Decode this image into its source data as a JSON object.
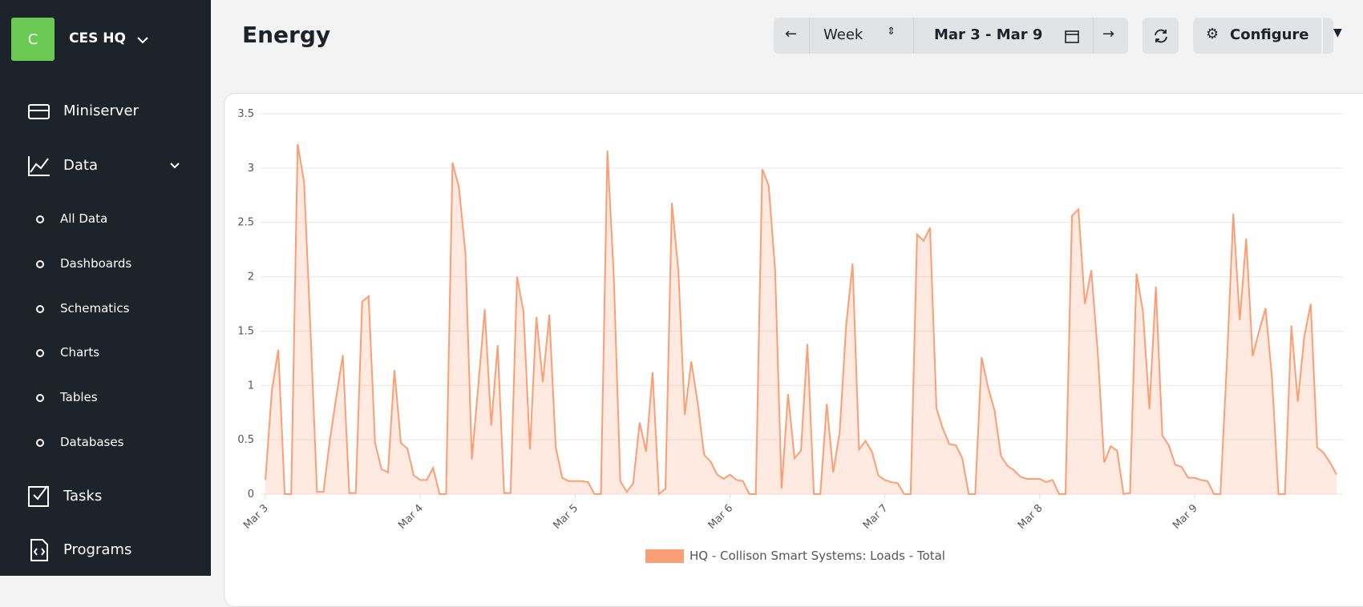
{
  "sidebar": {
    "org_initial": "C",
    "org_name": "CES HQ",
    "items": [
      "Miniserver",
      "Data"
    ],
    "sub_items": [
      "All Data",
      "Dashboards",
      "Schematics",
      "Charts",
      "Tables",
      "Databases"
    ],
    "items_after": [
      "Tasks",
      "Programs"
    ]
  },
  "header": {
    "title": "Energy",
    "period": "Week",
    "range": "Mar 3 - Mar 9",
    "configure": "Configure"
  },
  "chart_data": {
    "type": "line",
    "ylim": [
      0,
      3.5
    ],
    "yticks": [
      0,
      0.5,
      1,
      1.5,
      2,
      2.5,
      3,
      3.5
    ],
    "grid": true,
    "legend": "bottom",
    "categories": [
      "Mar 3",
      null,
      null,
      null,
      null,
      null,
      null,
      null,
      null,
      null,
      null,
      null,
      null,
      null,
      null,
      null,
      null,
      null,
      null,
      null,
      null,
      null,
      null,
      null,
      "Mar 4",
      null,
      null,
      null,
      null,
      null,
      null,
      null,
      null,
      null,
      null,
      null,
      null,
      null,
      null,
      null,
      null,
      null,
      null,
      null,
      null,
      null,
      null,
      null,
      "Mar 5",
      null,
      null,
      null,
      null,
      null,
      null,
      null,
      null,
      null,
      null,
      null,
      null,
      null,
      null,
      null,
      null,
      null,
      null,
      null,
      null,
      null,
      null,
      null,
      "Mar 6",
      null,
      null,
      null,
      null,
      null,
      null,
      null,
      null,
      null,
      null,
      null,
      null,
      null,
      null,
      null,
      null,
      null,
      null,
      null,
      null,
      null,
      null,
      null,
      "Mar 7",
      null,
      null,
      null,
      null,
      null,
      null,
      null,
      null,
      null,
      null,
      null,
      null,
      null,
      null,
      null,
      null,
      null,
      null,
      null,
      null,
      null,
      null,
      null,
      "Mar 8",
      null,
      null,
      null,
      null,
      null,
      null,
      null,
      null,
      null,
      null,
      null,
      null,
      null,
      null,
      null,
      null,
      null,
      null,
      null,
      null,
      null,
      null,
      null,
      "Mar 9",
      null,
      null,
      null,
      null,
      null,
      null,
      null,
      null,
      null,
      null,
      null,
      null,
      null,
      null,
      null,
      null,
      null,
      null,
      null,
      null,
      null,
      null
    ],
    "series": [
      {
        "name": "HQ - Collison Smart Systems: Loads - Total",
        "color": "#fb9e74",
        "values": [
          0.13,
          0.95,
          1.33,
          0,
          0,
          3.22,
          2.87,
          1.5,
          0.02,
          0.02,
          0.5,
          0.9,
          1.28,
          0.01,
          0.01,
          1.77,
          1.82,
          0.47,
          0.23,
          0.2,
          1.14,
          0.47,
          0.42,
          0.17,
          0.13,
          0.13,
          0.24,
          0,
          0,
          3.05,
          2.82,
          2.22,
          0.32,
          1.0,
          1.7,
          0.63,
          1.37,
          0.01,
          0.01,
          2.0,
          1.68,
          0.41,
          1.63,
          1.03,
          1.65,
          0.43,
          0.15,
          0.12,
          0.12,
          0.12,
          0.11,
          0,
          0,
          3.16,
          2.0,
          0.12,
          0.02,
          0.1,
          0.66,
          0.39,
          1.12,
          0,
          0.05,
          2.68,
          2.06,
          0.73,
          1.22,
          0.84,
          0.36,
          0.3,
          0.18,
          0.14,
          0.18,
          0.13,
          0.12,
          0,
          0,
          2.99,
          2.84,
          2.06,
          0.05,
          0.92,
          0.33,
          0.4,
          1.38,
          0,
          0,
          0.83,
          0.2,
          0.57,
          1.55,
          2.12,
          0.41,
          0.49,
          0.39,
          0.17,
          0.13,
          0.11,
          0.1,
          0,
          0,
          2.39,
          2.33,
          2.45,
          0.79,
          0.6,
          0.46,
          0.45,
          0.33,
          0,
          0,
          1.26,
          0.98,
          0.77,
          0.35,
          0.26,
          0.22,
          0.16,
          0.14,
          0.14,
          0.14,
          0.11,
          0.13,
          0,
          0,
          2.56,
          2.62,
          1.75,
          2.06,
          1.3,
          0.29,
          0.44,
          0.4,
          0,
          0.01,
          2.03,
          1.68,
          0.78,
          1.91,
          0.54,
          0.45,
          0.27,
          0.25,
          0.15,
          0.15,
          0.13,
          0.12,
          0,
          0,
          1.2,
          2.58,
          1.6,
          2.35,
          1.27,
          1.5,
          1.71,
          1.07,
          0,
          0,
          1.55,
          0.85,
          1.45,
          1.75,
          0.43,
          0.38,
          0.29,
          0.18
        ]
      }
    ]
  }
}
